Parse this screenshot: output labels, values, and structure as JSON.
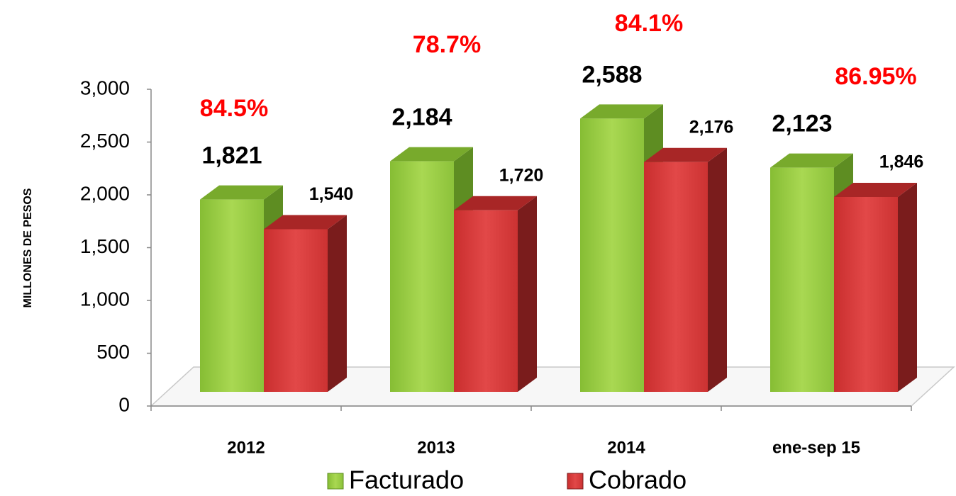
{
  "chart_data": {
    "type": "bar3d",
    "y_label": "MILLONES DE PESOS",
    "categories": [
      "2012",
      "2013",
      "2014",
      "ene-sep 15"
    ],
    "series": [
      {
        "name": "Facturado",
        "color": "#94c93f",
        "values": [
          1821,
          2184,
          2588,
          2123
        ],
        "value_labels": [
          "1,821",
          "2,184",
          "2,588",
          "2,123"
        ]
      },
      {
        "name": "Cobrado",
        "color": "#d63a3a",
        "values": [
          1540,
          1720,
          2176,
          1846
        ],
        "value_labels": [
          "1,540",
          "1,720",
          "2,176",
          "1,846"
        ]
      }
    ],
    "annotations": [
      "84.5%",
      "78.7%",
      "84.1%",
      "86.95%"
    ],
    "annotation_color": "#ff0000",
    "ylim": [
      0,
      3000
    ],
    "yticks": [
      0,
      500,
      {
        "value": 1000,
        "label": "1,000"
      },
      {
        "value": 1500,
        "label": "1,500"
      },
      {
        "value": 2000,
        "label": "2,000"
      },
      {
        "value": 2500,
        "label": "2,500"
      },
      {
        "value": 3000,
        "label": "3,000"
      }
    ],
    "legend": "bottom"
  }
}
